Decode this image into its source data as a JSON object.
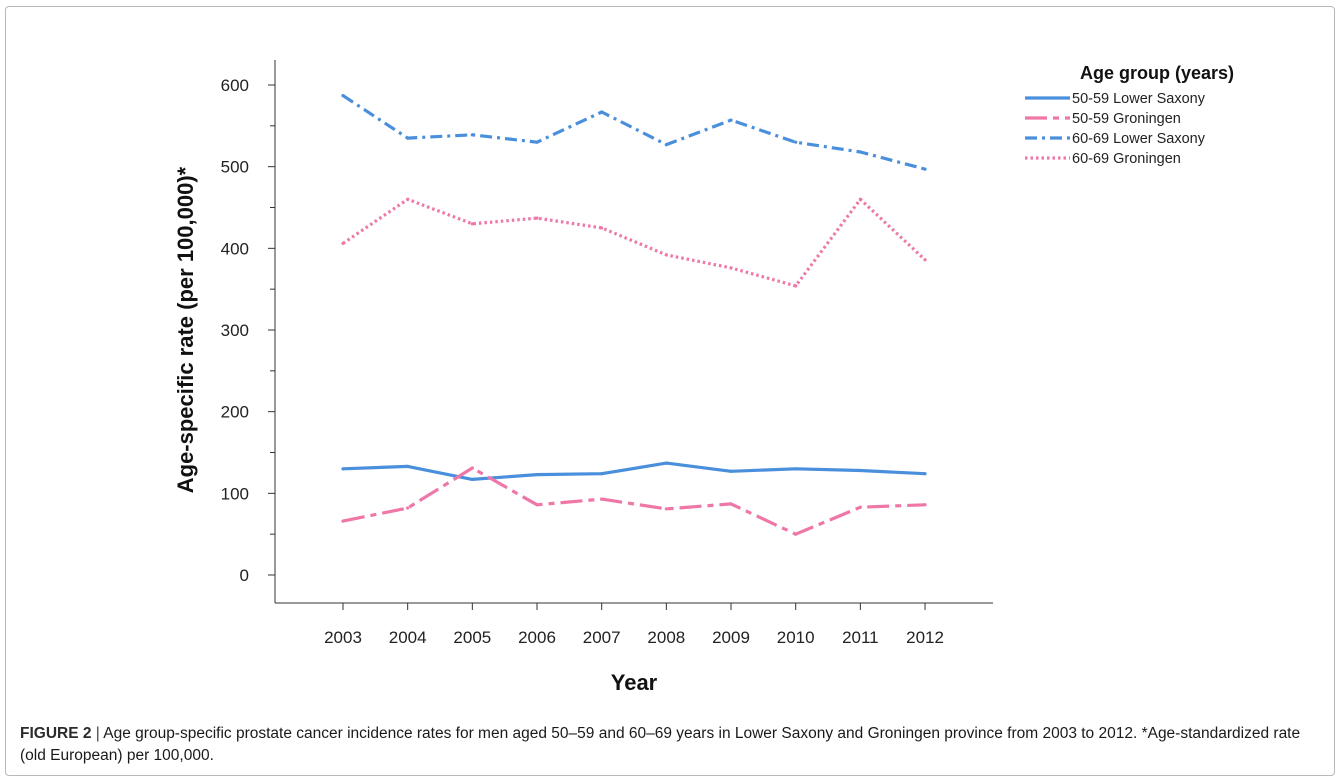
{
  "caption": {
    "label": "FIGURE 2",
    "separator": " | ",
    "text": "Age group-specific prostate cancer incidence rates for men aged 50–59 and 60–69 years in Lower Saxony and Groningen province from 2003 to 2012. *Age-standardized rate (old European) per 100,000."
  },
  "chart_data": {
    "type": "line",
    "xlabel": "Year",
    "ylabel": "Age-specific rate (per 100,000)*",
    "x": [
      "2003",
      "2004",
      "2005",
      "2006",
      "2007",
      "2008",
      "2009",
      "2010",
      "2011",
      "2012"
    ],
    "ylim": [
      0,
      600
    ],
    "yticks": [
      0,
      100,
      200,
      300,
      400,
      500,
      600
    ],
    "grid": false,
    "legend": {
      "title": "Age group (years)",
      "placement": "top-right"
    },
    "series": [
      {
        "name": "50-59 Lower Saxony",
        "color": "#4a8fdc",
        "dash": "solid",
        "values": [
          130,
          133,
          117,
          123,
          124,
          137,
          127,
          130,
          128,
          124
        ]
      },
      {
        "name": "50-59 Groningen",
        "color": "#ee77a8",
        "dash": "dashdot-long",
        "values": [
          66,
          82,
          131,
          86,
          93,
          81,
          87,
          50,
          83,
          86
        ]
      },
      {
        "name": "60-69 Lower Saxony",
        "color": "#4a8fdc",
        "dash": "dashdot",
        "values": [
          587,
          535,
          539,
          530,
          567,
          527,
          557,
          530,
          518,
          497
        ]
      },
      {
        "name": "60-69 Groningen",
        "color": "#ee77a8",
        "dash": "dotted",
        "values": [
          406,
          460,
          430,
          437,
          425,
          392,
          376,
          354,
          460,
          386
        ]
      }
    ]
  }
}
